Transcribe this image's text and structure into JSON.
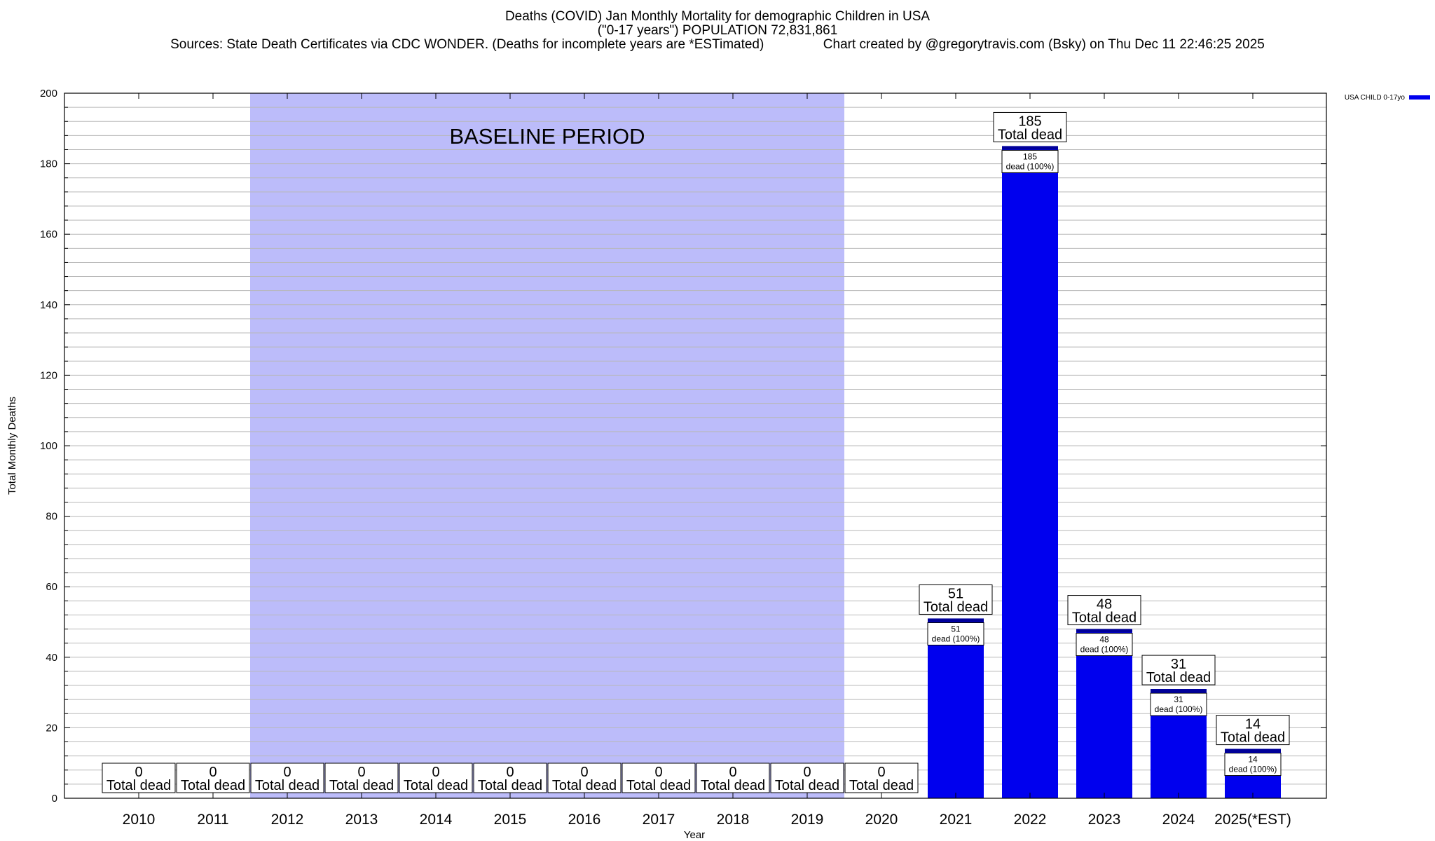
{
  "title": {
    "line1": "Deaths (COVID) Jan Monthly Mortality for demographic Children in USA",
    "line2": "(\"0-17 years\") POPULATION 72,831,861",
    "line3": "Sources: State Death Certificates via CDC WONDER. (Deaths for incomplete years are *ESTimated)                Chart created by @gregorytravis.com (Bsky) on Thu Dec 11 22:46:25 2025"
  },
  "colors": {
    "bar": "#0000ee",
    "bar_top": "#000099",
    "baseline_fill": "#bcbcfa",
    "grid": "#b8b8b8",
    "axis": "#000000"
  },
  "chart_data": {
    "type": "bar",
    "title": "Deaths (COVID) Jan Monthly Mortality for demographic Children in USA",
    "xlabel": "Year",
    "ylabel": "Total Monthly Deaths",
    "ylim": [
      0,
      200
    ],
    "yticks": [
      0,
      20,
      40,
      60,
      80,
      100,
      120,
      140,
      160,
      180,
      200
    ],
    "grid": true,
    "legend_position": "top-right",
    "categories": [
      "2010",
      "2011",
      "2012",
      "2013",
      "2014",
      "2015",
      "2016",
      "2017",
      "2018",
      "2019",
      "2020",
      "2021",
      "2022",
      "2023",
      "2024",
      "2025(*EST)"
    ],
    "series": [
      {
        "name": "USA CHILD 0-17yo",
        "values": [
          0,
          0,
          0,
          0,
          0,
          0,
          0,
          0,
          0,
          0,
          0,
          51,
          185,
          48,
          31,
          14
        ]
      }
    ],
    "total_label": "Total dead",
    "inner_label": "dead (100%)",
    "baseline": {
      "label": "BASELINE PERIOD",
      "from": "2012",
      "to": "2019"
    }
  }
}
